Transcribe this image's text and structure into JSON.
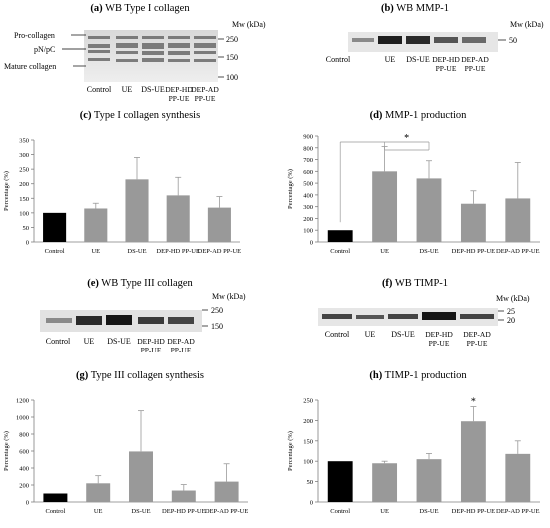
{
  "panels": {
    "a": {
      "tag": "(a)",
      "title": "WB Type I collagen",
      "mw_label": "Mw (kDa)",
      "band_labels": [
        "Pro-collagen",
        "pN/pC",
        "Mature collagen"
      ],
      "markers": [
        "250",
        "150",
        "100"
      ],
      "lanes": [
        "Control",
        "UE",
        "DS-UE",
        "DEP-HD\nPP-UE",
        "DEP-AD\nPP-UE"
      ]
    },
    "b": {
      "tag": "(b)",
      "title": "WB MMP-1",
      "mw_label": "Mw (kDa)",
      "markers": [
        "50"
      ],
      "lanes": [
        "Control",
        "UE",
        "DS-UE",
        "DEP-HD\nPP-UE",
        "DEP-AD\nPP-UE"
      ]
    },
    "e": {
      "tag": "(e)",
      "title": "WB Type III collagen",
      "mw_label": "Mw (kDa)",
      "markers": [
        "250",
        "150"
      ],
      "lanes": [
        "Control",
        "UE",
        "DS-UE",
        "DEP-HD\nPP-UE",
        "DEP-AD\nPP-UE"
      ]
    },
    "f": {
      "tag": "(f)",
      "title": "WB TIMP-1",
      "mw_label": "Mw (kDa)",
      "markers": [
        "25",
        "20"
      ],
      "lanes": [
        "Control",
        "UE",
        "DS-UE",
        "DEP-HD\nPP-UE",
        "DEP-AD\nPP-UE"
      ]
    }
  },
  "colors": {
    "control_bar": "#000000",
    "treatment_bar": "#999999",
    "axis": "#7f7f7f"
  },
  "chart_data": [
    {
      "id": "c",
      "tag": "(c)",
      "title": "Type I collagen synthesis",
      "type": "bar",
      "categories": [
        "Control",
        "UE",
        "DS-UE",
        "DEP-HD PP-UE",
        "DEP-AD PP-UE"
      ],
      "values": [
        100,
        115,
        215,
        160,
        118
      ],
      "errors": [
        0,
        18,
        75,
        62,
        38
      ],
      "ylabel": "Percentage (%)",
      "ylim": [
        0,
        350
      ],
      "yticks": [
        0,
        50,
        100,
        150,
        200,
        250,
        300,
        350
      ],
      "significance": []
    },
    {
      "id": "d",
      "tag": "(d)",
      "title": "MMP-1 production",
      "type": "bar",
      "categories": [
        "Control",
        "UE",
        "DS-UE",
        "DEP-HD PP-UE",
        "DEP-AD PP-UE"
      ],
      "values": [
        100,
        600,
        540,
        325,
        370
      ],
      "errors": [
        0,
        210,
        150,
        110,
        305
      ],
      "ylabel": "Percentage (%)",
      "ylim": [
        0,
        900
      ],
      "yticks": [
        0,
        100,
        200,
        300,
        400,
        500,
        600,
        700,
        800,
        900
      ],
      "significance": [
        "*"
      ]
    },
    {
      "id": "g",
      "tag": "(g)",
      "title": "Type III collagen synthesis",
      "type": "bar",
      "categories": [
        "Control",
        "UE",
        "DS-UE",
        "DEP-HD PP-UE",
        "DEP-AD PP-UE"
      ],
      "values": [
        100,
        220,
        595,
        135,
        240
      ],
      "errors": [
        0,
        90,
        480,
        70,
        210
      ],
      "ylabel": "Percentage (%)",
      "ylim": [
        0,
        1200
      ],
      "yticks": [
        0,
        200,
        400,
        600,
        800,
        1000,
        1200
      ],
      "significance": []
    },
    {
      "id": "h",
      "tag": "(h)",
      "title": "TIMP-1 production",
      "type": "bar",
      "categories": [
        "Control",
        "UE",
        "DS-UE",
        "DEP-HD PP-UE",
        "DEP-AD PP-UE"
      ],
      "values": [
        100,
        95,
        105,
        198,
        118
      ],
      "errors": [
        0,
        5,
        14,
        36,
        32
      ],
      "ylabel": "Percentage (%)",
      "ylim": [
        0,
        250
      ],
      "yticks": [
        0,
        50,
        100,
        150,
        200,
        250
      ],
      "significance": [
        "*"
      ]
    }
  ]
}
